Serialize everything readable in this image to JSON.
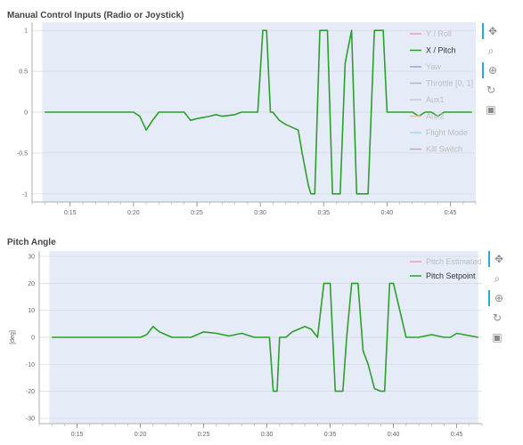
{
  "panels": [
    {
      "title": "Manual Control Inputs (Radio or Joystick)",
      "legend": [
        {
          "label": "Y / Roll",
          "color": "#e8a0b0",
          "muted": true
        },
        {
          "label": "X / Pitch",
          "color": "#2ca02c",
          "muted": false
        },
        {
          "label": "Yaw",
          "color": "#a0a0e0",
          "muted": true
        },
        {
          "label": "Throttle [0, 1]",
          "color": "#b8b8b8",
          "muted": true
        },
        {
          "label": "Aux1",
          "color": "#c8c8c8",
          "muted": true
        },
        {
          "label": "Aux2",
          "color": "#e0c0a0",
          "muted": true
        },
        {
          "label": "Flight Mode",
          "color": "#a0d8e8",
          "muted": true
        },
        {
          "label": "Kill Switch",
          "color": "#d0a0d0",
          "muted": true
        }
      ],
      "x_ticks": [
        "0:15",
        "0:20",
        "0:25",
        "0:30",
        "0:35",
        "0:40",
        "0:45"
      ],
      "y_ticks": [
        "1",
        "0.5",
        "0",
        "-0.5",
        "-1"
      ]
    },
    {
      "title": "Pitch Angle",
      "ylabel": "[deg]",
      "legend": [
        {
          "label": "Pitch Estimated",
          "color": "#e8a0b0",
          "muted": true
        },
        {
          "label": "Pitch Setpoint",
          "color": "#2ca02c",
          "muted": false
        }
      ],
      "x_ticks": [
        "0:15",
        "0:20",
        "0:25",
        "0:30",
        "0:35",
        "0:40",
        "0:45"
      ],
      "y_ticks": [
        "30",
        "20",
        "10",
        "0",
        "-10",
        "-20",
        "-30"
      ]
    }
  ],
  "toolbar_icons": [
    "pan-icon",
    "box-zoom-icon",
    "wheel-zoom-icon",
    "reset-icon",
    "save-icon"
  ],
  "chart_data": [
    {
      "type": "line",
      "title": "Manual Control Inputs (Radio or Joystick)",
      "xlim": [
        "0:12",
        "0:47"
      ],
      "ylim": [
        -1.1,
        1.1
      ],
      "grid": true,
      "legend_position": "top-right",
      "series": [
        {
          "name": "X / Pitch",
          "color": "#2ca02c",
          "x": [
            "0:13",
            "0:20",
            "0:20.5",
            "0:21",
            "0:21.5",
            "0:22",
            "0:22.5",
            "0:23",
            "0:24",
            "0:24.5",
            "0:25",
            "0:26",
            "0:26.5",
            "0:27",
            "0:28",
            "0:28.5",
            "0:29",
            "0:29.8",
            "0:30.2",
            "0:30.5",
            "0:30.8",
            "0:31",
            "0:31.5",
            "0:32",
            "0:33",
            "0:33.3",
            "0:33.8",
            "0:34",
            "0:34.3",
            "0:34.7",
            "0:35.3",
            "0:35.7",
            "0:36",
            "0:36.3",
            "0:36.7",
            "0:37.2",
            "0:37.6",
            "0:38",
            "0:38.5",
            "0:39",
            "0:39.3",
            "0:39.7",
            "0:40",
            "0:41",
            "0:42",
            "0:42.5",
            "0:43",
            "0:43.5",
            "0:44",
            "0:44.5",
            "0:46.7"
          ],
          "y": [
            0,
            0,
            -0.05,
            -0.22,
            -0.1,
            0,
            0,
            0,
            0,
            -0.1,
            -0.08,
            -0.05,
            -0.03,
            -0.05,
            -0.03,
            0,
            0,
            0,
            1,
            1,
            0,
            0,
            -0.1,
            -0.15,
            -0.22,
            -0.5,
            -0.9,
            -1,
            -1,
            1,
            1,
            -1,
            -1,
            -1,
            0.6,
            1,
            -1,
            -1,
            -1,
            1,
            1,
            1,
            0,
            0,
            0,
            -0.05,
            0,
            0,
            -0.05,
            0,
            0
          ]
        }
      ]
    },
    {
      "type": "line",
      "title": "Pitch Angle",
      "ylabel": "[deg]",
      "xlim": [
        "0:12",
        "0:47"
      ],
      "ylim": [
        -32,
        32
      ],
      "grid": true,
      "legend_position": "top-right",
      "series": [
        {
          "name": "Pitch Setpoint",
          "color": "#2ca02c",
          "x": [
            "0:13",
            "0:20",
            "0:20.5",
            "0:21",
            "0:21.5",
            "0:22",
            "0:22.5",
            "0:23",
            "0:24",
            "0:25",
            "0:26",
            "0:27",
            "0:28",
            "0:29",
            "0:29.8",
            "0:30.2",
            "0:30.5",
            "0:30.8",
            "0:31",
            "0:31.5",
            "0:32",
            "0:33",
            "0:33.5",
            "0:34",
            "0:34.5",
            "0:35",
            "0:35.4",
            "0:35.7",
            "0:36",
            "0:36.3",
            "0:36.7",
            "0:37.2",
            "0:37.6",
            "0:38",
            "0:38.5",
            "0:39",
            "0:39.3",
            "0:39.7",
            "0:40",
            "0:41",
            "0:42",
            "0:43",
            "0:44",
            "0:44.5",
            "0:45",
            "0:46.7"
          ],
          "y": [
            0,
            0,
            1,
            4,
            2,
            1,
            0,
            0,
            0,
            2,
            1.5,
            0.5,
            1.5,
            0,
            0,
            0,
            -20,
            -20,
            0,
            0,
            2,
            4,
            3,
            0,
            20,
            20,
            -20,
            -20,
            -20,
            0,
            20,
            20,
            -5,
            -10,
            -19,
            -20,
            -20,
            20,
            20,
            0,
            0,
            1,
            0,
            0,
            1.5,
            0
          ]
        }
      ]
    }
  ]
}
